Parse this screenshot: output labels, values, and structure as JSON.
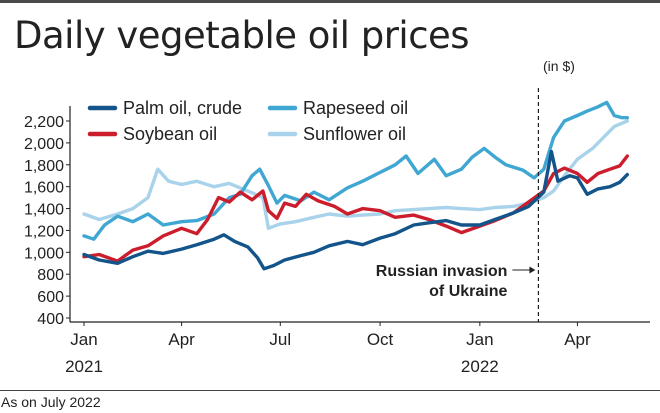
{
  "header": {
    "title": "Daily vegetable oil prices",
    "unit_note": "(in $)"
  },
  "footer": {
    "note": "As on July 2022"
  },
  "colors": {
    "palm": "#13548a",
    "rapeseed": "#3fa7d2",
    "soybean": "#cc1d2c",
    "sunflower": "#a9d3ea",
    "axis": "#222222",
    "text": "#222222"
  },
  "chart_data": {
    "type": "line",
    "title": "Daily vegetable oil prices",
    "ylabel": "",
    "xlabel": "",
    "ylim": [
      400,
      2300
    ],
    "grid": false,
    "legend_position": "top",
    "y_ticks": [
      "2,200",
      "2,000",
      "1,800",
      "1,600",
      "1,400",
      "1,200",
      "1,000",
      "800",
      "600",
      "400"
    ],
    "y_tick_values": [
      2200,
      2000,
      1800,
      1600,
      1400,
      1200,
      1000,
      800,
      600,
      400
    ],
    "x_ticks": [
      {
        "month": "Jan",
        "year": "2021",
        "date": "2021-01-01"
      },
      {
        "month": "Apr",
        "year": "",
        "date": "2021-04-01"
      },
      {
        "month": "Jul",
        "year": "",
        "date": "2021-07-01"
      },
      {
        "month": "Oct",
        "year": "",
        "date": "2021-10-01"
      },
      {
        "month": "Jan",
        "year": "2022",
        "date": "2022-01-01"
      },
      {
        "month": "Apr",
        "year": "",
        "date": "2022-04-01"
      }
    ],
    "series": [
      {
        "name": "Palm oil, crude",
        "color": "#13548a",
        "points": [
          [
            "2021-01-01",
            980
          ],
          [
            "2021-01-15",
            930
          ],
          [
            "2021-02-01",
            900
          ],
          [
            "2021-02-15",
            960
          ],
          [
            "2021-03-01",
            1010
          ],
          [
            "2021-03-15",
            990
          ],
          [
            "2021-04-01",
            1030
          ],
          [
            "2021-04-15",
            1070
          ],
          [
            "2021-05-01",
            1120
          ],
          [
            "2021-05-10",
            1160
          ],
          [
            "2021-05-20",
            1100
          ],
          [
            "2021-06-01",
            1050
          ],
          [
            "2021-06-10",
            950
          ],
          [
            "2021-06-16",
            850
          ],
          [
            "2021-06-25",
            880
          ],
          [
            "2021-07-05",
            930
          ],
          [
            "2021-07-20",
            970
          ],
          [
            "2021-08-01",
            1000
          ],
          [
            "2021-08-15",
            1060
          ],
          [
            "2021-09-01",
            1100
          ],
          [
            "2021-09-15",
            1070
          ],
          [
            "2021-10-01",
            1130
          ],
          [
            "2021-10-15",
            1170
          ],
          [
            "2021-11-01",
            1250
          ],
          [
            "2021-11-15",
            1270
          ],
          [
            "2021-12-01",
            1290
          ],
          [
            "2021-12-15",
            1250
          ],
          [
            "2022-01-01",
            1250
          ],
          [
            "2022-01-15",
            1300
          ],
          [
            "2022-02-01",
            1360
          ],
          [
            "2022-02-15",
            1420
          ],
          [
            "2022-03-01",
            1550
          ],
          [
            "2022-03-08",
            1920
          ],
          [
            "2022-03-14",
            1650
          ],
          [
            "2022-03-25",
            1700
          ],
          [
            "2022-04-01",
            1680
          ],
          [
            "2022-04-10",
            1530
          ],
          [
            "2022-04-20",
            1580
          ],
          [
            "2022-05-01",
            1600
          ],
          [
            "2022-05-10",
            1640
          ],
          [
            "2022-05-17",
            1710
          ]
        ]
      },
      {
        "name": "Rapeseed oil",
        "color": "#3fa7d2",
        "points": [
          [
            "2021-01-01",
            1150
          ],
          [
            "2021-01-10",
            1120
          ],
          [
            "2021-01-20",
            1250
          ],
          [
            "2021-02-01",
            1330
          ],
          [
            "2021-02-15",
            1280
          ],
          [
            "2021-03-01",
            1350
          ],
          [
            "2021-03-15",
            1250
          ],
          [
            "2021-04-01",
            1280
          ],
          [
            "2021-04-15",
            1290
          ],
          [
            "2021-05-01",
            1350
          ],
          [
            "2021-05-15",
            1500
          ],
          [
            "2021-05-25",
            1530
          ],
          [
            "2021-06-05",
            1700
          ],
          [
            "2021-06-12",
            1760
          ],
          [
            "2021-06-20",
            1610
          ],
          [
            "2021-06-28",
            1450
          ],
          [
            "2021-07-05",
            1520
          ],
          [
            "2021-07-20",
            1470
          ],
          [
            "2021-08-01",
            1550
          ],
          [
            "2021-08-15",
            1480
          ],
          [
            "2021-09-01",
            1590
          ],
          [
            "2021-09-15",
            1650
          ],
          [
            "2021-10-01",
            1730
          ],
          [
            "2021-10-15",
            1800
          ],
          [
            "2021-10-25",
            1880
          ],
          [
            "2021-11-05",
            1720
          ],
          [
            "2021-11-20",
            1850
          ],
          [
            "2021-12-01",
            1700
          ],
          [
            "2021-12-15",
            1760
          ],
          [
            "2021-12-25",
            1870
          ],
          [
            "2022-01-05",
            1950
          ],
          [
            "2022-01-15",
            1870
          ],
          [
            "2022-01-25",
            1800
          ],
          [
            "2022-02-10",
            1750
          ],
          [
            "2022-02-20",
            1680
          ],
          [
            "2022-03-01",
            1760
          ],
          [
            "2022-03-10",
            2050
          ],
          [
            "2022-03-20",
            2200
          ],
          [
            "2022-04-01",
            2250
          ],
          [
            "2022-04-10",
            2290
          ],
          [
            "2022-04-20",
            2330
          ],
          [
            "2022-04-28",
            2370
          ],
          [
            "2022-05-05",
            2250
          ],
          [
            "2022-05-12",
            2230
          ],
          [
            "2022-05-17",
            2230
          ]
        ]
      },
      {
        "name": "Soybean oil",
        "color": "#cc1d2c",
        "points": [
          [
            "2021-01-01",
            960
          ],
          [
            "2021-01-15",
            980
          ],
          [
            "2021-02-01",
            920
          ],
          [
            "2021-02-15",
            1020
          ],
          [
            "2021-03-01",
            1060
          ],
          [
            "2021-03-15",
            1150
          ],
          [
            "2021-04-01",
            1220
          ],
          [
            "2021-04-15",
            1170
          ],
          [
            "2021-04-25",
            1300
          ],
          [
            "2021-05-05",
            1500
          ],
          [
            "2021-05-15",
            1460
          ],
          [
            "2021-05-25",
            1550
          ],
          [
            "2021-06-05",
            1480
          ],
          [
            "2021-06-15",
            1560
          ],
          [
            "2021-06-20",
            1380
          ],
          [
            "2021-06-28",
            1310
          ],
          [
            "2021-07-05",
            1450
          ],
          [
            "2021-07-15",
            1420
          ],
          [
            "2021-07-25",
            1530
          ],
          [
            "2021-08-05",
            1470
          ],
          [
            "2021-08-20",
            1420
          ],
          [
            "2021-09-01",
            1350
          ],
          [
            "2021-09-15",
            1400
          ],
          [
            "2021-10-01",
            1380
          ],
          [
            "2021-10-15",
            1320
          ],
          [
            "2021-11-01",
            1340
          ],
          [
            "2021-11-15",
            1300
          ],
          [
            "2021-12-01",
            1240
          ],
          [
            "2021-12-15",
            1180
          ],
          [
            "2022-01-01",
            1240
          ],
          [
            "2022-01-15",
            1290
          ],
          [
            "2022-02-01",
            1360
          ],
          [
            "2022-02-15",
            1460
          ],
          [
            "2022-03-01",
            1560
          ],
          [
            "2022-03-10",
            1720
          ],
          [
            "2022-03-20",
            1770
          ],
          [
            "2022-04-01",
            1720
          ],
          [
            "2022-04-10",
            1640
          ],
          [
            "2022-04-20",
            1720
          ],
          [
            "2022-05-01",
            1760
          ],
          [
            "2022-05-10",
            1790
          ],
          [
            "2022-05-17",
            1880
          ]
        ]
      },
      {
        "name": "Sunflower oil",
        "color": "#a9d3ea",
        "points": [
          [
            "2021-01-01",
            1350
          ],
          [
            "2021-01-15",
            1300
          ],
          [
            "2021-02-01",
            1350
          ],
          [
            "2021-02-15",
            1400
          ],
          [
            "2021-03-01",
            1500
          ],
          [
            "2021-03-10",
            1760
          ],
          [
            "2021-03-20",
            1650
          ],
          [
            "2021-04-01",
            1620
          ],
          [
            "2021-04-15",
            1650
          ],
          [
            "2021-05-01",
            1600
          ],
          [
            "2021-05-15",
            1630
          ],
          [
            "2021-06-01",
            1560
          ],
          [
            "2021-06-15",
            1500
          ],
          [
            "2021-06-20",
            1220
          ],
          [
            "2021-07-01",
            1260
          ],
          [
            "2021-07-15",
            1280
          ],
          [
            "2021-08-01",
            1320
          ],
          [
            "2021-08-15",
            1350
          ],
          [
            "2021-09-01",
            1330
          ],
          [
            "2021-09-15",
            1340
          ],
          [
            "2021-10-01",
            1350
          ],
          [
            "2021-10-15",
            1380
          ],
          [
            "2021-11-01",
            1390
          ],
          [
            "2021-11-15",
            1400
          ],
          [
            "2021-12-01",
            1410
          ],
          [
            "2021-12-15",
            1400
          ],
          [
            "2022-01-01",
            1390
          ],
          [
            "2022-01-15",
            1410
          ],
          [
            "2022-02-01",
            1420
          ],
          [
            "2022-02-15",
            1450
          ],
          [
            "2022-03-01",
            1500
          ],
          [
            "2022-03-10",
            1560
          ],
          [
            "2022-03-20",
            1700
          ],
          [
            "2022-04-01",
            1850
          ],
          [
            "2022-04-15",
            1950
          ],
          [
            "2022-04-25",
            2050
          ],
          [
            "2022-05-05",
            2150
          ],
          [
            "2022-05-17",
            2200
          ]
        ]
      }
    ],
    "annotations": [
      {
        "text_line1": "Russian invasion",
        "text_line2": "of Ukraine",
        "date": "2022-02-24"
      }
    ]
  }
}
